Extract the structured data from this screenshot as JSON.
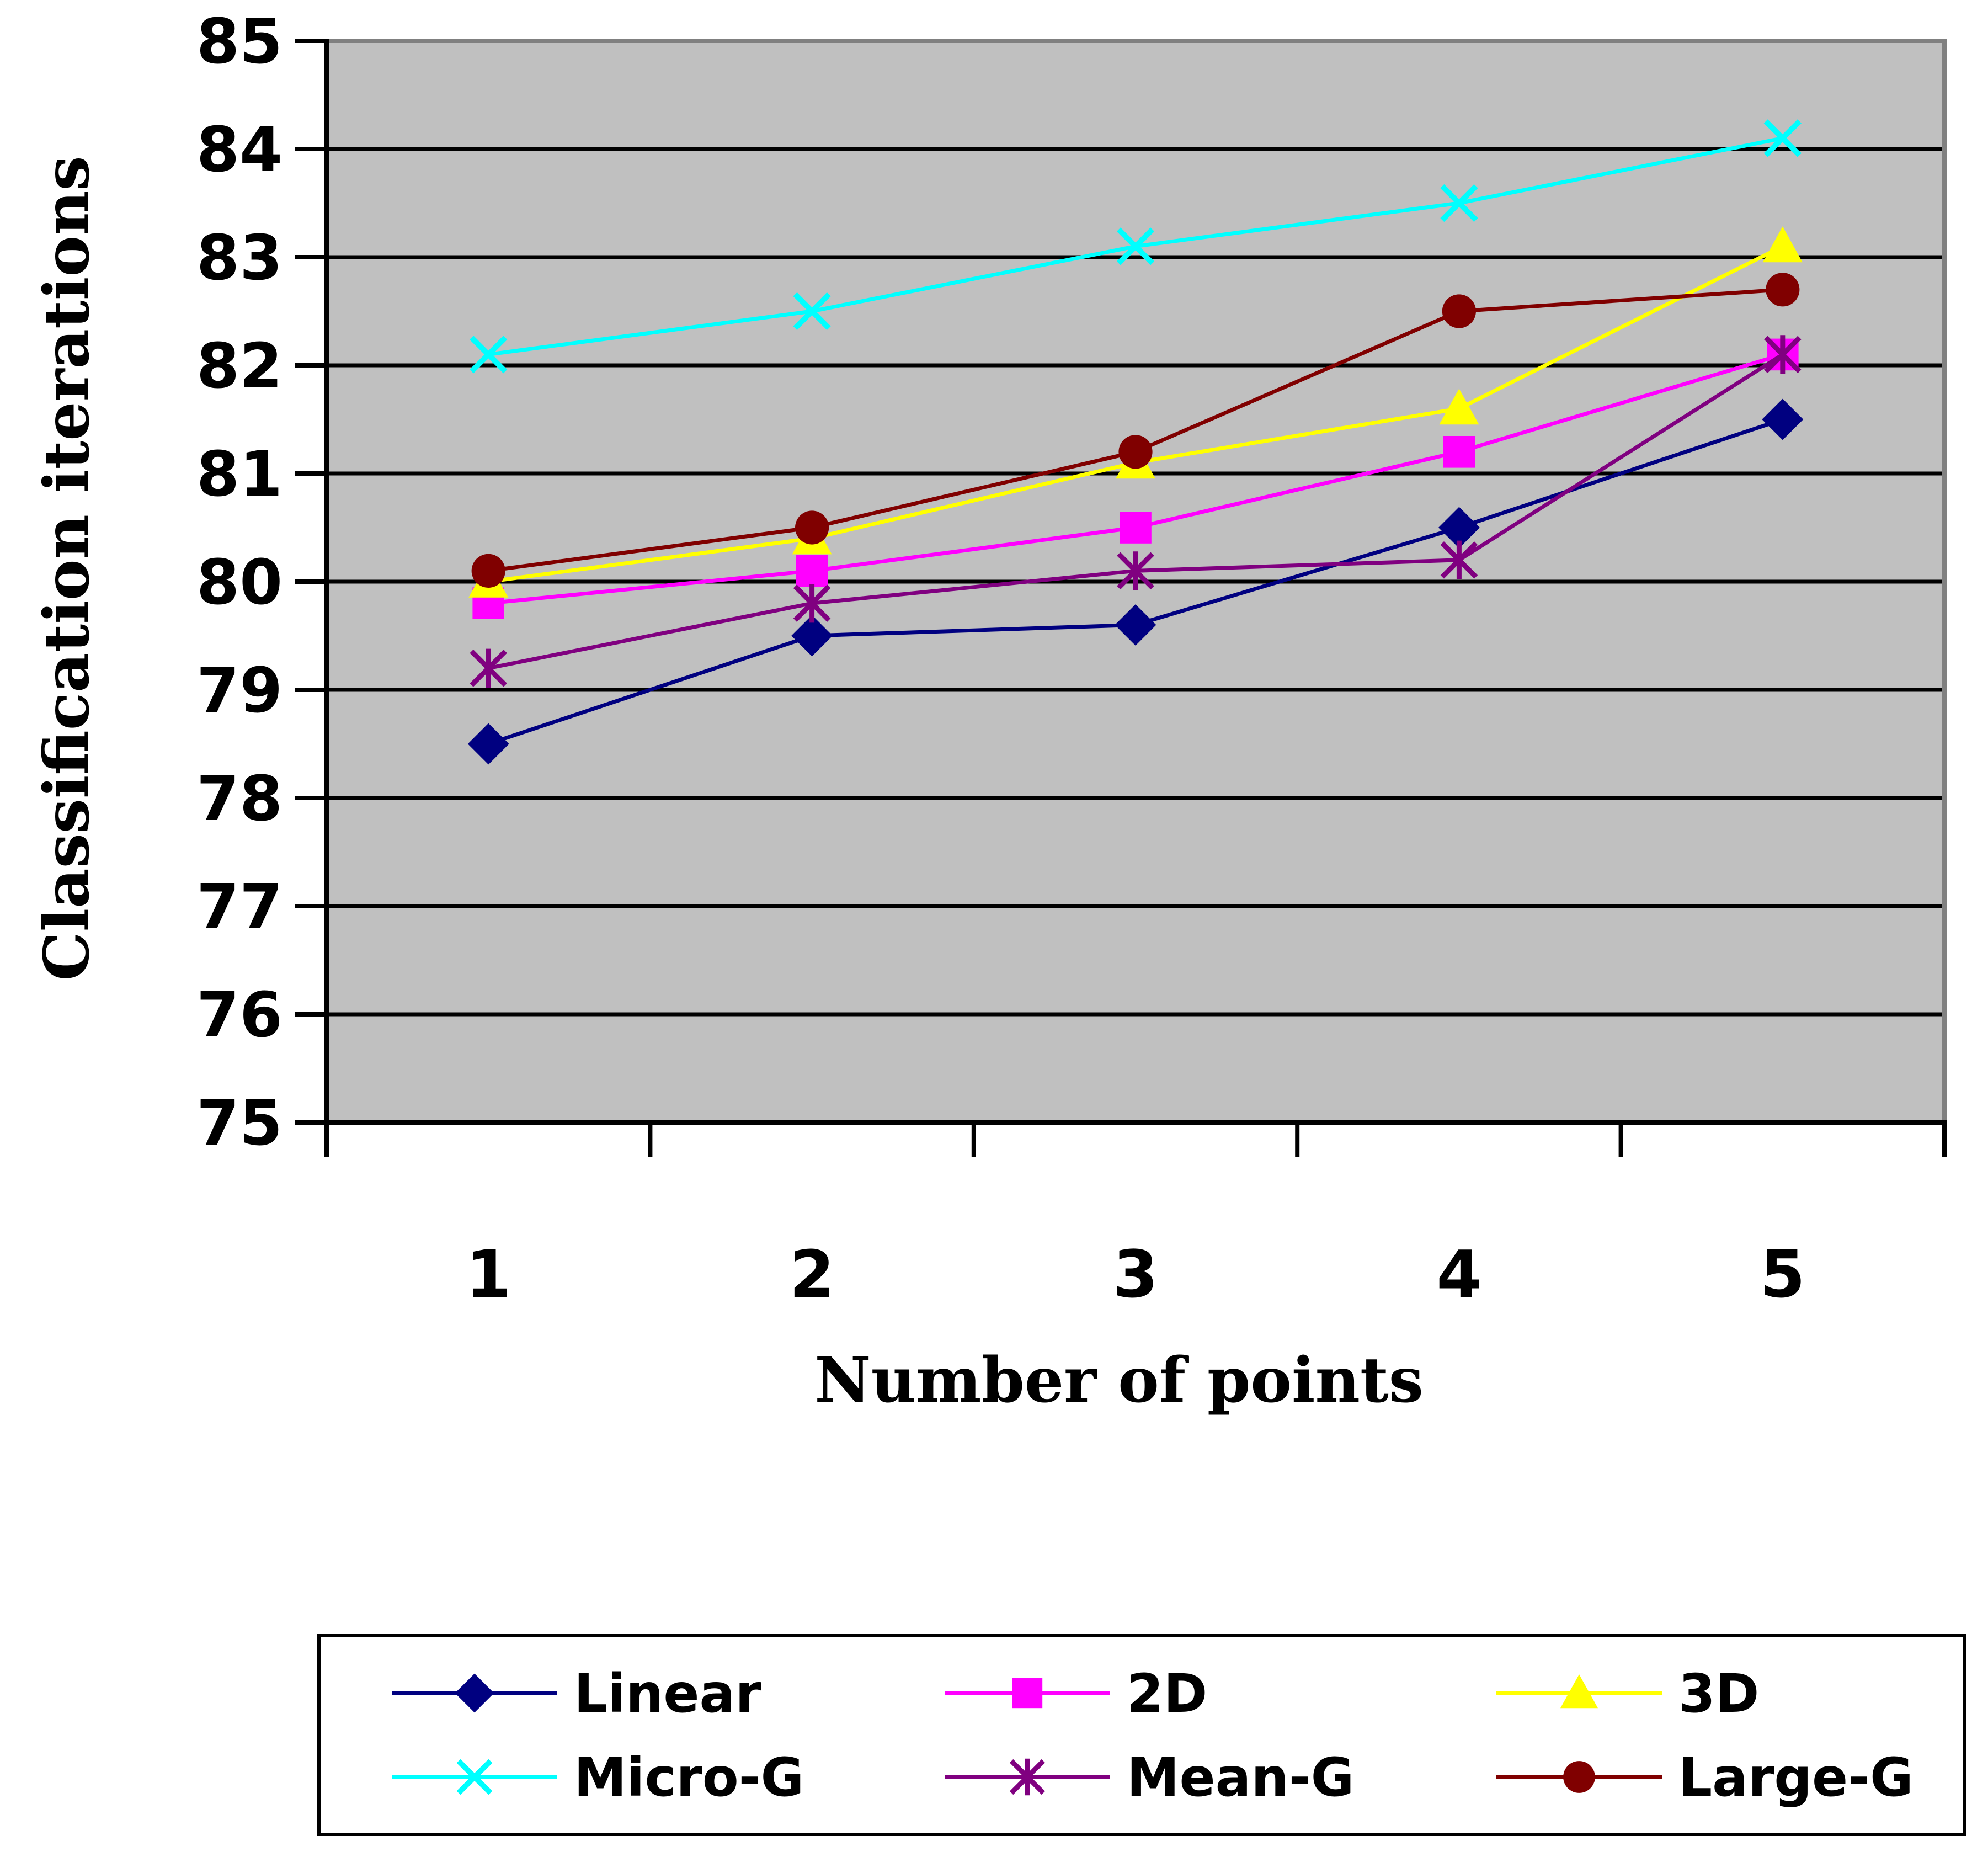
{
  "chart_data": {
    "type": "line",
    "title": "",
    "xlabel": "Number of points",
    "ylabel": "Classification iterations",
    "categories": [
      "1",
      "2",
      "3",
      "4",
      "5"
    ],
    "ylim": [
      75,
      85
    ],
    "yticks": [
      "75",
      "76",
      "77",
      "78",
      "79",
      "80",
      "81",
      "82",
      "83",
      "84",
      "85"
    ],
    "grid": "horizontal",
    "plot_background": "#C0C0C0",
    "legend_position": "bottom",
    "series": [
      {
        "name": "Linear",
        "color": "#000080",
        "marker": "diamond",
        "values": [
          78.5,
          79.5,
          79.6,
          80.5,
          81.5
        ]
      },
      {
        "name": "2D",
        "color": "#FF00FF",
        "marker": "square",
        "values": [
          79.8,
          80.1,
          80.5,
          81.2,
          82.1
        ]
      },
      {
        "name": "3D",
        "color": "#FFFF00",
        "marker": "triangle",
        "values": [
          80.0,
          80.4,
          81.1,
          81.6,
          83.1
        ]
      },
      {
        "name": "Micro-G",
        "color": "#00FFFF",
        "marker": "x",
        "values": [
          82.1,
          82.5,
          83.1,
          83.5,
          84.1
        ]
      },
      {
        "name": "Mean-G",
        "color": "#800080",
        "marker": "star",
        "values": [
          79.2,
          79.8,
          80.1,
          80.2,
          82.1
        ]
      },
      {
        "name": "Large-G",
        "color": "#800000",
        "marker": "circle",
        "values": [
          80.1,
          80.5,
          81.2,
          82.5,
          82.7
        ]
      }
    ]
  }
}
